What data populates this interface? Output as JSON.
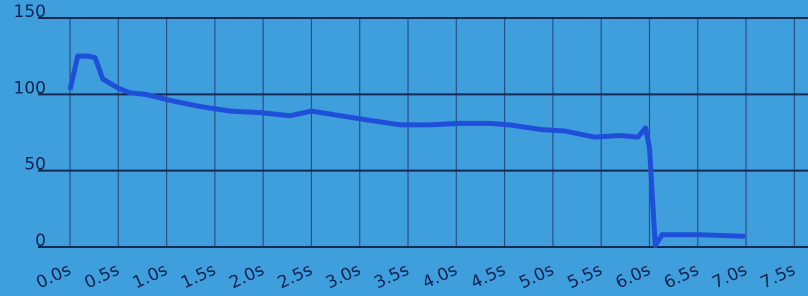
{
  "chart_data": {
    "type": "line",
    "x": [
      0,
      0.08,
      0.19,
      0.26,
      0.34,
      0.5,
      0.62,
      0.78,
      1.04,
      1.35,
      1.66,
      1.97,
      2.28,
      2.5,
      2.8,
      3.1,
      3.42,
      3.73,
      4.04,
      4.35,
      4.55,
      4.87,
      5.12,
      5.43,
      5.69,
      5.88,
      5.96,
      6.0,
      6.06,
      6.13,
      6.52,
      6.99
    ],
    "series": [
      {
        "color": "#1f4fd8",
        "values": [
          103,
          125,
          125,
          124,
          110,
          104,
          101,
          100,
          96,
          92,
          89,
          88,
          86,
          89,
          86,
          83,
          80,
          80,
          81,
          81,
          80,
          77,
          76,
          72,
          73,
          72,
          78,
          65,
          1,
          8,
          8,
          7
        ]
      }
    ],
    "xlim": [
      0,
      7.6
    ],
    "xticks": [
      {
        "value": 0,
        "label": "0.0s"
      },
      {
        "value": 0.5,
        "label": "0.5s"
      },
      {
        "value": 1,
        "label": "1.0s"
      },
      {
        "value": 1.5,
        "label": "1.5s"
      },
      {
        "value": 2,
        "label": "2.0s"
      },
      {
        "value": 2.5,
        "label": "2.5s"
      },
      {
        "value": 3,
        "label": "3.0s"
      },
      {
        "value": 3.5,
        "label": "3.5s"
      },
      {
        "value": 4,
        "label": "4.0s"
      },
      {
        "value": 4.5,
        "label": "4.5s"
      },
      {
        "value": 5,
        "label": "5.0s"
      },
      {
        "value": 5.5,
        "label": "5.5s"
      },
      {
        "value": 6,
        "label": "6.0s"
      },
      {
        "value": 6.5,
        "label": "6.5s"
      },
      {
        "value": 7,
        "label": "7.0s"
      },
      {
        "value": 7.5,
        "label": "7.5s"
      }
    ],
    "ylim": [
      0,
      150
    ],
    "yticks": [
      0,
      50,
      100,
      150
    ],
    "grid": true
  }
}
